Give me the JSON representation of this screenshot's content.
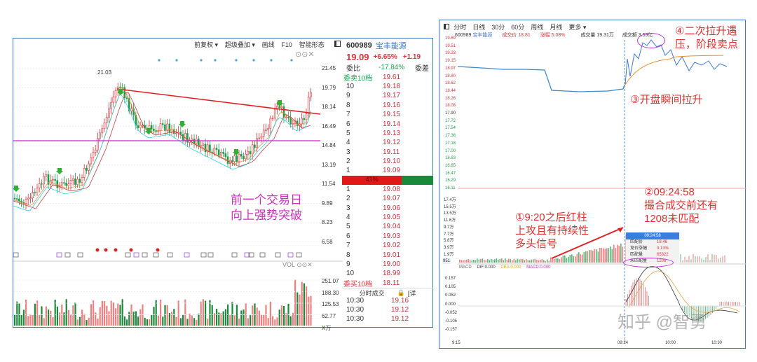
{
  "left": {
    "toolbar": [
      "前复权 ▾",
      "超级叠加 ▾",
      "画线",
      "F10",
      "智能形态"
    ],
    "price_axis": [
      "21.45",
      "19.79",
      "18.14",
      "16.49",
      "14.84",
      "13.19",
      "11.54",
      "9.89",
      "8.23",
      "6.58"
    ],
    "high_label": "21.03",
    "vol_label": "VOL",
    "vol_axis": [
      "251.07",
      "188.30",
      "125.53",
      "62.77",
      "X万"
    ],
    "annotation": [
      "前一个交易日",
      "向上强势突破"
    ],
    "colors": {
      "up": "#e0333a",
      "down": "#1a9e4a",
      "trend": "#e02020",
      "support": "#d020d0",
      "accent": "#d030c0"
    }
  },
  "orderbook": {
    "code": "600989",
    "name": "宝丰能源",
    "price": "19.09",
    "pct": "+6.65%",
    "chg": "+1.19",
    "ratio_label": "委比",
    "ratio": "-17.84%",
    "diff_label": "委差",
    "sell10_label": "委卖10档",
    "sell10": "19.61",
    "asks": [
      [
        "10",
        "19.18"
      ],
      [
        "9",
        "19.17"
      ],
      [
        "8",
        "19.16"
      ],
      [
        "7",
        "19.15"
      ],
      [
        "6",
        "19.14"
      ],
      [
        "5",
        "19.13"
      ],
      [
        "4",
        "19.12"
      ],
      [
        "3",
        "19.11"
      ],
      [
        "2",
        "19.10"
      ],
      [
        "1",
        "19.09"
      ]
    ],
    "bar_pct": "41%",
    "bar_value": 41,
    "bids": [
      [
        "1",
        "19.08"
      ],
      [
        "2",
        "19.07"
      ],
      [
        "3",
        "19.06"
      ],
      [
        "4",
        "19.05"
      ],
      [
        "5",
        "19.04"
      ],
      [
        "6",
        "19.03"
      ],
      [
        "7",
        "19.02"
      ],
      [
        "8",
        "19.01"
      ],
      [
        "9",
        "19.00"
      ],
      [
        "10",
        "18.99"
      ]
    ],
    "buy10_label": "委买10档",
    "buy10": "18.11",
    "trades_title": "分时成交",
    "trades_more": "[详",
    "trades": [
      [
        "10:30",
        "19.16"
      ],
      [
        "10:30",
        "19.12"
      ],
      [
        "10:30",
        "19.12"
      ]
    ]
  },
  "right": {
    "tabs": [
      "分时",
      "日线",
      "30分",
      "60分",
      "周线",
      "月线",
      "更多 ▾"
    ],
    "info": {
      "code": "600989",
      "name": "宝丰能源",
      "price": "成交价 18.81",
      "pct": "涨幅 5.08%",
      "vol": "成交量 19.31万",
      "amt": "成交额 3.59亿"
    },
    "price_axis_red": [
      "19.69",
      "19.51",
      "19.33",
      "19.15",
      "18.97",
      "18.80",
      "18.62",
      "18.44",
      "18.26",
      "18.08"
    ],
    "price_axis_mid": "17.90",
    "price_axis_green": [
      "17.72",
      "17.54",
      "17.36",
      "17.18",
      "17.00",
      "16.83",
      "16.65",
      "16.47",
      "16.29",
      "16.11"
    ],
    "vol_axis": [
      "17.4万",
      "15.5万",
      "13.5万",
      "11.6万",
      "9.7万",
      "7.7万",
      "5.8万",
      "3.9万",
      "1.9万"
    ],
    "vol_min": "951",
    "macd_legend": {
      "name": "MACD",
      "dif": "DIF:0.000",
      "dea": "DEA:0.000",
      "macd": "MACD:0.000"
    },
    "macd_axis": [
      "0.157",
      "0.105",
      "0.052",
      "0.000",
      "-0.052",
      "-0.105",
      "-0.157"
    ],
    "time_axis": [
      "9:15",
      "09:24",
      "10:00",
      "10:30"
    ],
    "tooltip": {
      "time": "09:24:58",
      "rows": [
        [
          "匹配价",
          "18.46"
        ],
        [
          "竞价涨幅",
          "3.13%"
        ],
        [
          "匹配量",
          "65322"
        ],
        [
          "未匹配量",
          "1208"
        ]
      ]
    },
    "annotations": {
      "a4": [
        "④二次拉升遇",
        "压，阶段卖点"
      ],
      "a3": "③开盘瞬间拉升",
      "a2": [
        "②09:24:58",
        "撮合成交前还有",
        "1208未匹配"
      ],
      "a1": [
        "①9:20之后红柱",
        "上攻且有持续性",
        "多头信号"
      ]
    },
    "watermark": "知乎 @智勇"
  }
}
